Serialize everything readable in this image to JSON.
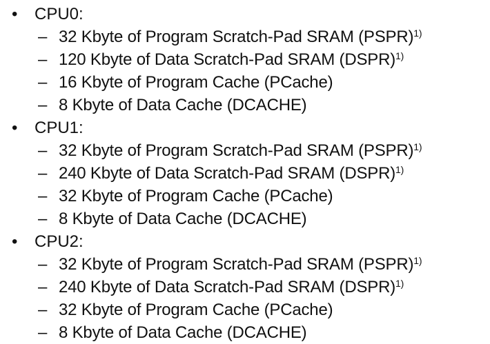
{
  "groups": [
    {
      "title": "CPU0:",
      "items": [
        {
          "text": "32 Kbyte of Program Scratch-Pad SRAM (PSPR)",
          "note": "1)"
        },
        {
          "text": "120 Kbyte of Data Scratch-Pad SRAM (DSPR)",
          "note": "1)"
        },
        {
          "text": "16 Kbyte of Program Cache (PCache)",
          "note": ""
        },
        {
          "text": "8 Kbyte of Data Cache (DCACHE)",
          "note": ""
        }
      ]
    },
    {
      "title": "CPU1:",
      "items": [
        {
          "text": "32 Kbyte of Program Scratch-Pad SRAM (PSPR)",
          "note": "1)"
        },
        {
          "text": "240 Kbyte of Data Scratch-Pad SRAM (DSPR)",
          "note": "1)"
        },
        {
          "text": "32 Kbyte of Program Cache (PCache)",
          "note": ""
        },
        {
          "text": "8 Kbyte of Data Cache (DCACHE)",
          "note": ""
        }
      ]
    },
    {
      "title": "CPU2:",
      "items": [
        {
          "text": "32 Kbyte of Program Scratch-Pad SRAM (PSPR)",
          "note": "1)"
        },
        {
          "text": "240 Kbyte of Data Scratch-Pad SRAM (DSPR)",
          "note": "1)"
        },
        {
          "text": "32 Kbyte of Program Cache (PCache)",
          "note": ""
        },
        {
          "text": "8 Kbyte of Data Cache (DCACHE)",
          "note": ""
        }
      ]
    }
  ],
  "bullet": "•",
  "dash": "–"
}
